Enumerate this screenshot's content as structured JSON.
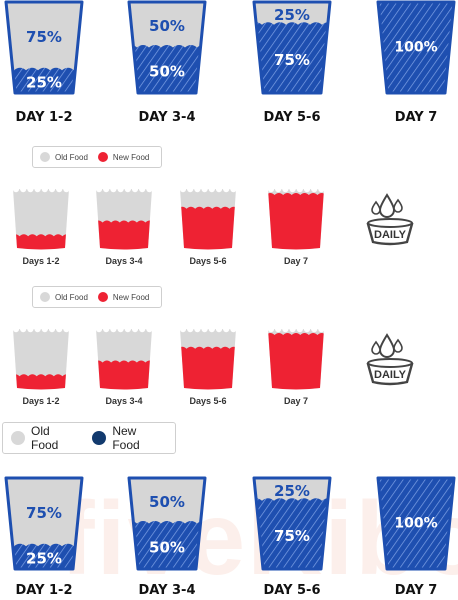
{
  "colors": {
    "blue": "#1e4fb0",
    "blue_light_fill": "#d9d9d9",
    "red": "#ee2233",
    "grey": "#d8d8d8",
    "navy_dot": "#123a6e"
  },
  "top_chart": {
    "cups": [
      {
        "day": "DAY 1-2",
        "old_pct": "75%",
        "new_pct": "25%",
        "new_fraction": 0.25
      },
      {
        "day": "DAY 3-4",
        "old_pct": "50%",
        "new_pct": "50%",
        "new_fraction": 0.5
      },
      {
        "day": "DAY 5-6",
        "old_pct": "25%",
        "new_pct": "75%",
        "new_fraction": 0.75
      },
      {
        "day": "DAY 7",
        "old_pct": "",
        "new_pct": "100%",
        "new_fraction": 1.0
      }
    ]
  },
  "red_section_1": {
    "legend": {
      "old": "Old Food",
      "new": "New Food"
    },
    "cups": [
      {
        "day": "Days 1-2",
        "new_fraction": 0.25
      },
      {
        "day": "Days 3-4",
        "new_fraction": 0.5
      },
      {
        "day": "Days 5-6",
        "new_fraction": 0.75
      },
      {
        "day": "Day 7",
        "new_fraction": 1.0
      }
    ],
    "bowl_label": "DAILY"
  },
  "red_section_2": {
    "legend": {
      "old": "Old Food",
      "new": "New Food"
    },
    "cups": [
      {
        "day": "Days 1-2",
        "new_fraction": 0.25
      },
      {
        "day": "Days 3-4",
        "new_fraction": 0.5
      },
      {
        "day": "Days 5-6",
        "new_fraction": 0.75
      },
      {
        "day": "Day 7",
        "new_fraction": 1.0
      }
    ],
    "bowl_label": "DAILY"
  },
  "blue_legend": {
    "old": "Old Food",
    "new": "New Food"
  },
  "bottom_chart": {
    "cups": [
      {
        "day": "DAY 1-2",
        "old_pct": "75%",
        "new_pct": "25%",
        "new_fraction": 0.25
      },
      {
        "day": "DAY 3-4",
        "old_pct": "50%",
        "new_pct": "50%",
        "new_fraction": 0.5
      },
      {
        "day": "DAY 5-6",
        "old_pct": "25%",
        "new_pct": "75%",
        "new_fraction": 0.75
      },
      {
        "day": "DAY 7",
        "old_pct": "",
        "new_pct": "100%",
        "new_fraction": 1.0
      }
    ]
  },
  "watermark": "fiveKibo"
}
